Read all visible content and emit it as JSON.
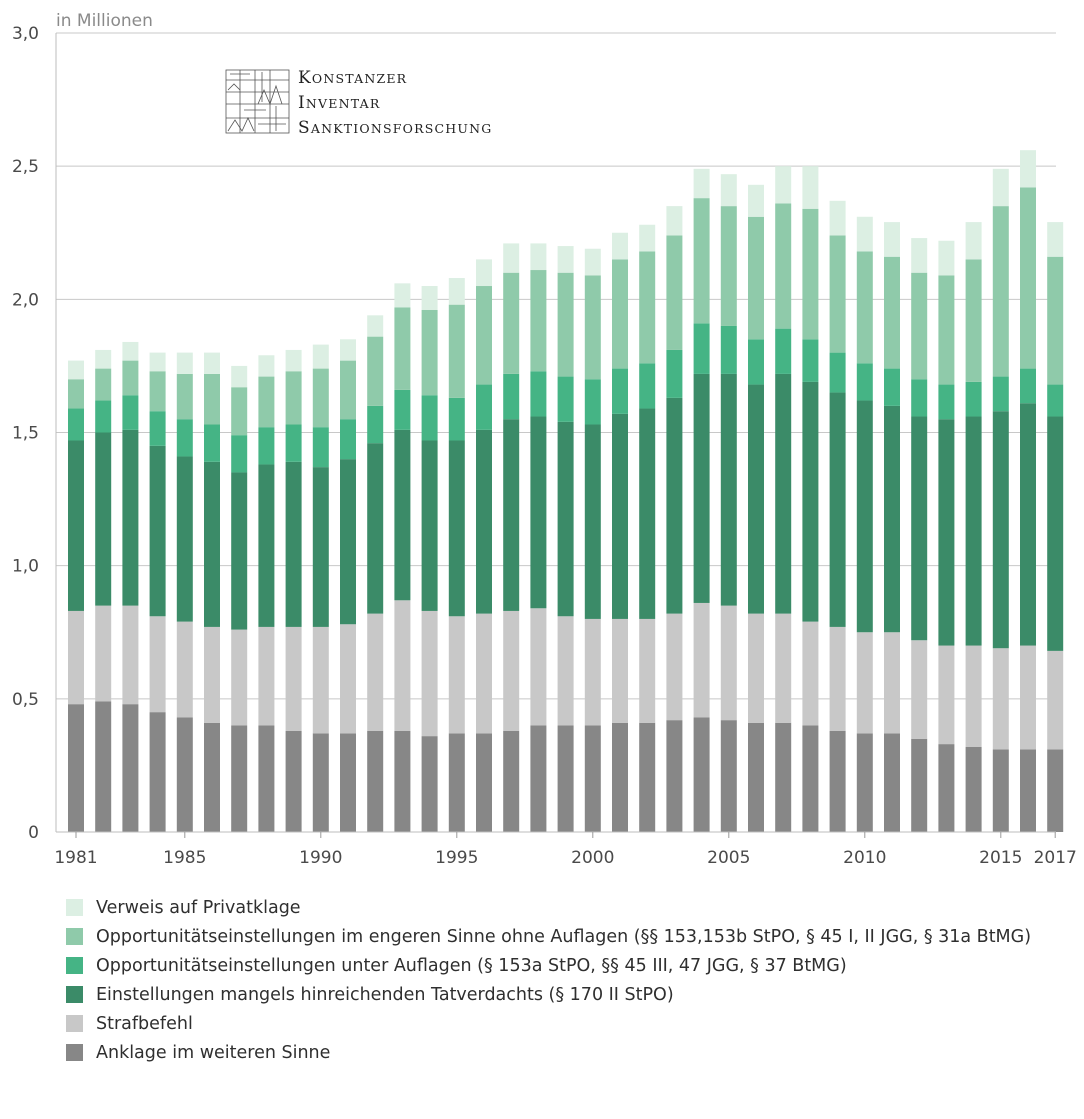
{
  "chart_data": {
    "type": "bar",
    "stacked": true,
    "ylabel": "in Millionen",
    "ylim": [
      0,
      3.0
    ],
    "ytick_labels": [
      {
        "value": 0,
        "label": "0"
      },
      {
        "value": 0.5,
        "label": "0,5"
      },
      {
        "value": 1.0,
        "label": "1,0"
      },
      {
        "value": 1.5,
        "label": "1,5"
      },
      {
        "value": 2.0,
        "label": "2,0"
      },
      {
        "value": 2.5,
        "label": "2,5"
      },
      {
        "value": 3.0,
        "label": "3,0"
      }
    ],
    "grid": true,
    "legend_position": "bottom",
    "x_ticks": [
      "1981",
      "1985",
      "1990",
      "1995",
      "2000",
      "2005",
      "2010",
      "2015",
      "2017"
    ],
    "categories": [
      "1981",
      "1982",
      "1983",
      "1984",
      "1985",
      "1986",
      "1987",
      "1988",
      "1989",
      "1990",
      "1991",
      "1992",
      "1993",
      "1994",
      "1995",
      "1996",
      "1997",
      "1998",
      "1999",
      "2000",
      "2001",
      "2002",
      "2003",
      "2004",
      "2005",
      "2006",
      "2007",
      "2008",
      "2009",
      "2010",
      "2011",
      "2012",
      "2013",
      "2014",
      "2015",
      "2016",
      "2017"
    ],
    "series": [
      {
        "name": "Anklage im weiteren Sinne",
        "color": "#878787",
        "values": [
          0.48,
          0.49,
          0.48,
          0.45,
          0.43,
          0.41,
          0.4,
          0.4,
          0.38,
          0.37,
          0.37,
          0.38,
          0.38,
          0.36,
          0.37,
          0.37,
          0.38,
          0.4,
          0.4,
          0.4,
          0.41,
          0.41,
          0.42,
          0.43,
          0.42,
          0.41,
          0.41,
          0.4,
          0.38,
          0.37,
          0.37,
          0.35,
          0.33,
          0.32,
          0.31,
          0.31,
          0.31
        ]
      },
      {
        "name": "Strafbefehl",
        "color": "#c8c8c8",
        "values": [
          0.35,
          0.36,
          0.37,
          0.36,
          0.36,
          0.36,
          0.36,
          0.37,
          0.39,
          0.4,
          0.41,
          0.44,
          0.49,
          0.47,
          0.44,
          0.45,
          0.45,
          0.44,
          0.41,
          0.4,
          0.39,
          0.39,
          0.4,
          0.43,
          0.43,
          0.41,
          0.41,
          0.39,
          0.39,
          0.38,
          0.38,
          0.37,
          0.37,
          0.38,
          0.38,
          0.39,
          0.37
        ]
      },
      {
        "name": "Einstellungen mangels hinreichenden Tatverdachts (§ 170 II StPO)",
        "color": "#3b8b68",
        "values": [
          0.64,
          0.65,
          0.66,
          0.64,
          0.62,
          0.62,
          0.59,
          0.61,
          0.62,
          0.6,
          0.62,
          0.64,
          0.64,
          0.64,
          0.66,
          0.69,
          0.72,
          0.72,
          0.73,
          0.73,
          0.77,
          0.79,
          0.81,
          0.86,
          0.87,
          0.86,
          0.9,
          0.9,
          0.88,
          0.87,
          0.85,
          0.84,
          0.85,
          0.86,
          0.89,
          0.91,
          0.88
        ]
      },
      {
        "name": "Opportunitätseinstellungen unter Auflagen (§ 153a StPO, §§ 45 III, 47 JGG, § 37 BtMG)",
        "color": "#45b485",
        "values": [
          0.12,
          0.12,
          0.13,
          0.13,
          0.14,
          0.14,
          0.14,
          0.14,
          0.14,
          0.15,
          0.15,
          0.14,
          0.15,
          0.17,
          0.16,
          0.17,
          0.17,
          0.17,
          0.17,
          0.17,
          0.17,
          0.17,
          0.18,
          0.19,
          0.18,
          0.17,
          0.17,
          0.16,
          0.15,
          0.14,
          0.14,
          0.14,
          0.13,
          0.13,
          0.13,
          0.13,
          0.12
        ]
      },
      {
        "name": "Opportunitätseinstellungen im engeren Sinne ohne Auflagen (§§ 153,153b StPO, § 45 I, II JGG, § 31a BtMG)",
        "color": "#8fcaaa",
        "values": [
          0.11,
          0.12,
          0.13,
          0.15,
          0.17,
          0.19,
          0.18,
          0.19,
          0.2,
          0.22,
          0.22,
          0.26,
          0.31,
          0.32,
          0.35,
          0.37,
          0.38,
          0.38,
          0.39,
          0.39,
          0.41,
          0.42,
          0.43,
          0.47,
          0.45,
          0.46,
          0.47,
          0.49,
          0.44,
          0.42,
          0.42,
          0.4,
          0.41,
          0.46,
          0.64,
          0.68,
          0.48
        ]
      },
      {
        "name": "Verweis auf Privatklage",
        "color": "#dcefe3",
        "values": [
          0.07,
          0.07,
          0.07,
          0.07,
          0.08,
          0.08,
          0.08,
          0.08,
          0.08,
          0.09,
          0.08,
          0.08,
          0.09,
          0.09,
          0.1,
          0.1,
          0.11,
          0.1,
          0.1,
          0.1,
          0.1,
          0.1,
          0.11,
          0.11,
          0.12,
          0.12,
          0.14,
          0.16,
          0.13,
          0.13,
          0.13,
          0.13,
          0.13,
          0.14,
          0.14,
          0.14,
          0.13
        ]
      }
    ]
  },
  "logo": {
    "lines": [
      {
        "cap": "K",
        "rest": "ONSTANZER"
      },
      {
        "cap": "I",
        "rest": "NVENTAR"
      },
      {
        "cap": "S",
        "rest": "ANKTIONSFORSCHUNG"
      }
    ]
  }
}
